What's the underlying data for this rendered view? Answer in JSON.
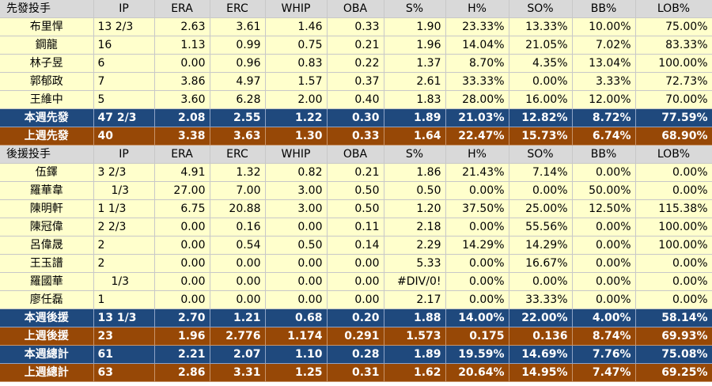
{
  "columns": [
    "IP",
    "ERA",
    "ERC",
    "WHIP",
    "OBA",
    "S%",
    "H%",
    "SO%",
    "BB%",
    "LOB%"
  ],
  "starters": {
    "header": "先發投手",
    "rows": [
      {
        "name": "布里悍",
        "values": [
          "13 2/3",
          "2.63",
          "3.61",
          "1.46",
          "0.33",
          "1.90",
          "23.33%",
          "13.33%",
          "10.00%",
          "75.00%"
        ]
      },
      {
        "name": "鋼龍",
        "values": [
          "16",
          "1.13",
          "0.99",
          "0.75",
          "0.21",
          "1.96",
          "14.04%",
          "21.05%",
          "7.02%",
          "83.33%"
        ]
      },
      {
        "name": "林子昱",
        "values": [
          "6",
          "0.00",
          "0.96",
          "0.83",
          "0.22",
          "1.37",
          "8.70%",
          "4.35%",
          "13.04%",
          "100.00%"
        ]
      },
      {
        "name": "郭郁政",
        "values": [
          "7",
          "3.86",
          "4.97",
          "1.57",
          "0.37",
          "2.61",
          "33.33%",
          "0.00%",
          "3.33%",
          "72.73%"
        ]
      },
      {
        "name": "王維中",
        "values": [
          "5",
          "3.60",
          "6.28",
          "2.00",
          "0.40",
          "1.83",
          "28.00%",
          "16.00%",
          "12.00%",
          "70.00%"
        ]
      }
    ],
    "this_week": {
      "name": "本週先發",
      "values": [
        "47 2/3",
        "2.08",
        "2.55",
        "1.22",
        "0.30",
        "1.89",
        "21.03%",
        "12.82%",
        "8.72%",
        "77.59%"
      ]
    },
    "last_week": {
      "name": "上週先發",
      "values": [
        "40",
        "3.38",
        "3.63",
        "1.30",
        "0.33",
        "1.64",
        "22.47%",
        "15.73%",
        "6.74%",
        "68.90%"
      ]
    }
  },
  "relievers": {
    "header": "後援投手",
    "rows": [
      {
        "name": "伍鐸",
        "values": [
          "3 2/3",
          "4.91",
          "1.32",
          "0.82",
          "0.21",
          "1.86",
          "21.43%",
          "7.14%",
          "0.00%",
          "0.00%"
        ]
      },
      {
        "name": "羅華韋",
        "values": [
          "1/3",
          "27.00",
          "7.00",
          "3.00",
          "0.50",
          "0.50",
          "0.00%",
          "0.00%",
          "50.00%",
          "0.00%"
        ]
      },
      {
        "name": "陳明軒",
        "values": [
          "1 1/3",
          "6.75",
          "20.88",
          "3.00",
          "0.50",
          "1.20",
          "37.50%",
          "25.00%",
          "12.50%",
          "115.38%"
        ]
      },
      {
        "name": "陳冠偉",
        "values": [
          "2 2/3",
          "0.00",
          "0.16",
          "0.00",
          "0.11",
          "2.18",
          "0.00%",
          "55.56%",
          "0.00%",
          "100.00%"
        ]
      },
      {
        "name": "呂偉晟",
        "values": [
          "2",
          "0.00",
          "0.54",
          "0.50",
          "0.14",
          "2.29",
          "14.29%",
          "14.29%",
          "0.00%",
          "100.00%"
        ]
      },
      {
        "name": "王玉譜",
        "values": [
          "2",
          "0.00",
          "0.00",
          "0.00",
          "0.00",
          "5.33",
          "0.00%",
          "16.67%",
          "0.00%",
          "0.00%"
        ]
      },
      {
        "name": "羅國華",
        "values": [
          "1/3",
          "0.00",
          "0.00",
          "0.00",
          "0.00",
          "#DIV/0!",
          "0.00%",
          "0.00%",
          "0.00%",
          "0.00%"
        ]
      },
      {
        "name": "廖任磊",
        "values": [
          "1",
          "0.00",
          "0.00",
          "0.00",
          "0.00",
          "2.17",
          "0.00%",
          "33.33%",
          "0.00%",
          "0.00%"
        ]
      }
    ],
    "this_week": {
      "name": "本週後援",
      "values": [
        "13 1/3",
        "2.70",
        "1.21",
        "0.68",
        "0.20",
        "1.88",
        "14.00%",
        "22.00%",
        "4.00%",
        "58.14%"
      ]
    },
    "last_week": {
      "name": "上週後援",
      "values": [
        "23",
        "1.96",
        "2.776",
        "1.174",
        "0.291",
        "1.573",
        "0.175",
        "0.136",
        "8.74%",
        "69.93%"
      ]
    }
  },
  "totals": {
    "this_week": {
      "name": "本週總計",
      "values": [
        "61",
        "2.21",
        "2.07",
        "1.10",
        "0.28",
        "1.89",
        "19.59%",
        "14.69%",
        "7.76%",
        "75.08%"
      ]
    },
    "last_week": {
      "name": "上週總計",
      "values": [
        "63",
        "2.86",
        "3.31",
        "1.25",
        "0.31",
        "1.62",
        "20.64%",
        "14.95%",
        "7.47%",
        "69.25%"
      ]
    }
  },
  "colors": {
    "header_bg": "#d9d9d9",
    "row_bg": "#ffffcc",
    "this_week_bg": "#1f497d",
    "last_week_bg": "#974806"
  }
}
